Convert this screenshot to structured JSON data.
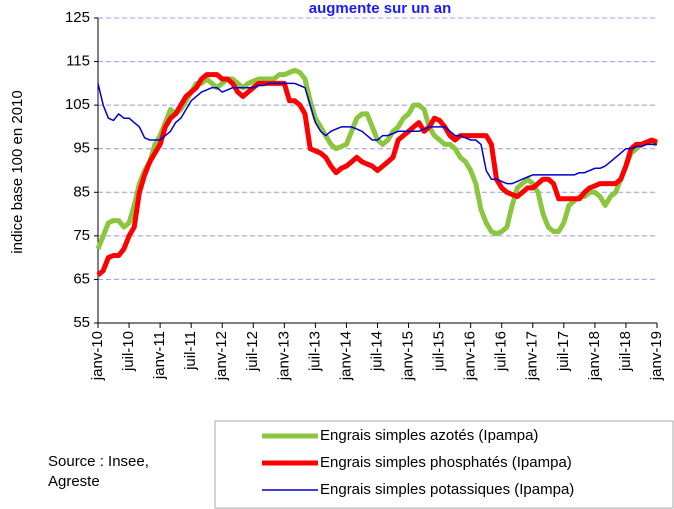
{
  "chart_data": {
    "type": "line",
    "title": "augmente sur un an",
    "y_label": "indice base 100 en 2010",
    "source": [
      "Source : Insee,",
      "Agreste"
    ],
    "categories": [
      "janv-10",
      null,
      null,
      null,
      null,
      null,
      "juil-10",
      null,
      null,
      null,
      null,
      null,
      "janv-11",
      null,
      null,
      null,
      null,
      null,
      "juil-11",
      null,
      null,
      null,
      null,
      null,
      "janv-12",
      null,
      null,
      null,
      null,
      null,
      "juil-12",
      null,
      null,
      null,
      null,
      null,
      "janv-13",
      null,
      null,
      null,
      null,
      null,
      "juil-13",
      null,
      null,
      null,
      null,
      null,
      "janv-14",
      null,
      null,
      null,
      null,
      null,
      "juil-14",
      null,
      null,
      null,
      null,
      null,
      "janv-15",
      null,
      null,
      null,
      null,
      null,
      "juil-15",
      null,
      null,
      null,
      null,
      null,
      "janv-16",
      null,
      null,
      null,
      null,
      null,
      "juil-16",
      null,
      null,
      null,
      null,
      null,
      "janv-17",
      null,
      null,
      null,
      null,
      null,
      "juil-17",
      null,
      null,
      null,
      null,
      null,
      "janv-18",
      null,
      null,
      null,
      null,
      null,
      "juil-18",
      null,
      null,
      null,
      null,
      null,
      "janv-19"
    ],
    "series": [
      {
        "name": "Engrais simples azotés (Ipampa)",
        "color": "#8cc63f",
        "width": 5,
        "values": [
          72,
          75,
          78,
          78.5,
          78.5,
          77,
          78,
          82,
          87,
          90,
          92,
          96,
          98,
          101,
          104,
          103,
          104,
          106,
          108,
          110,
          110,
          111,
          110,
          109,
          110,
          111,
          111,
          110,
          109,
          110,
          110.5,
          111,
          111,
          111,
          111,
          112,
          112,
          112.5,
          113,
          112.5,
          111,
          106,
          102,
          100,
          98,
          96,
          95,
          95.5,
          96,
          99,
          102,
          103,
          103,
          100,
          97,
          96,
          97,
          99,
          100,
          102,
          103,
          105,
          105,
          104,
          100,
          98,
          97,
          96,
          96,
          95,
          93,
          92,
          90,
          87,
          81,
          78,
          76,
          75.5,
          76,
          77,
          82,
          86,
          87,
          88,
          87,
          85,
          80,
          77,
          76,
          76,
          78,
          82,
          83,
          84,
          84,
          85,
          85,
          84,
          82,
          84,
          85,
          88,
          91,
          94,
          95,
          96,
          96.5,
          96.5,
          96
        ]
      },
      {
        "name": "Engrais simples phosphatés (Ipampa)",
        "color": "#ff0000",
        "width": 5,
        "values": [
          66,
          67,
          70,
          70.5,
          70.5,
          72,
          75,
          77,
          85,
          89,
          92,
          94,
          96,
          100,
          102,
          103,
          105,
          107,
          108,
          109,
          111,
          112,
          112,
          112,
          111,
          111,
          110,
          108,
          107,
          108,
          109,
          110,
          110,
          110,
          110,
          110,
          110,
          106,
          106,
          105,
          103,
          95,
          94.5,
          94,
          93,
          91,
          89.5,
          90.5,
          91,
          92,
          93,
          92,
          91.5,
          91,
          90,
          91,
          92,
          93,
          97,
          98,
          99,
          100,
          101,
          99,
          100,
          102,
          101.5,
          100,
          98,
          97,
          98,
          98,
          98,
          98,
          98,
          98,
          96,
          88,
          86,
          85,
          84.5,
          84,
          85,
          86,
          86,
          87,
          88,
          88,
          87,
          83.5,
          83.5,
          83.5,
          83.5,
          83.5,
          85,
          86,
          86.5,
          87,
          87,
          87,
          87,
          88,
          91,
          95,
          96,
          96,
          96.5,
          97,
          96.5
        ]
      },
      {
        "name": "Engrais simples potassiques (Ipampa)",
        "color": "#0000cc",
        "width": 1.5,
        "values": [
          110,
          105,
          102,
          101.5,
          103,
          102,
          102,
          101,
          100,
          97.5,
          97,
          97,
          97,
          98,
          99,
          101,
          102,
          104,
          106,
          107,
          108,
          108.5,
          109,
          109,
          108,
          108.5,
          109,
          109,
          109,
          109,
          109,
          109.5,
          109.5,
          110,
          110,
          110,
          110,
          110,
          110,
          109.5,
          109,
          105,
          101,
          99,
          98,
          99,
          99.5,
          100,
          100,
          100,
          99.5,
          99,
          98,
          97,
          97,
          98,
          98,
          98.5,
          99,
          99,
          99,
          99,
          99,
          99.5,
          100,
          100,
          100,
          100,
          99,
          98,
          98,
          97.5,
          97,
          97,
          96,
          90,
          88,
          88,
          87.5,
          87,
          87,
          87.5,
          88,
          88.5,
          89,
          89,
          89,
          89,
          89,
          89,
          89,
          89,
          89,
          89.5,
          89.5,
          90,
          90.5,
          90.5,
          91,
          92,
          93,
          94,
          95,
          95,
          95.5,
          95.5,
          96,
          96,
          96
        ]
      }
    ],
    "ylim": [
      55,
      125
    ],
    "yticks": [
      55,
      65,
      75,
      85,
      95,
      105,
      115,
      125
    ],
    "grid": true
  }
}
